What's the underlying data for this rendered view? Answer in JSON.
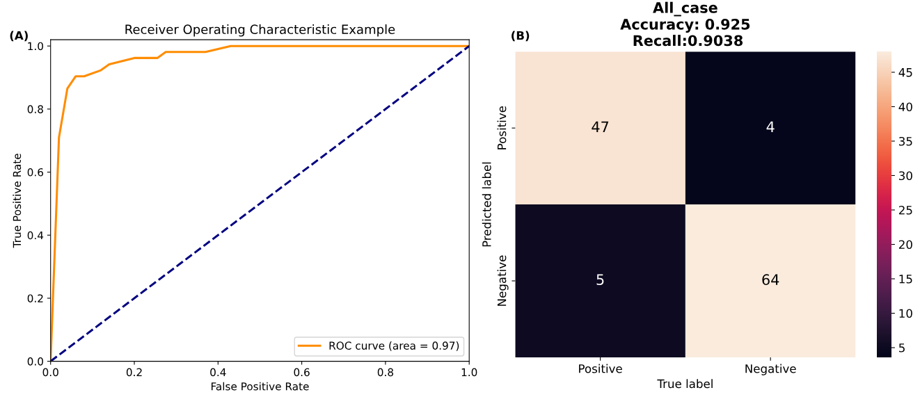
{
  "chart_data": [
    {
      "type": "line",
      "title": "Receiver Operating Characteristic Example",
      "xlabel": "False Positive Rate",
      "ylabel": "True Positive Rate",
      "annotations": [
        "(A)"
      ],
      "series": [
        {
          "name": "ROC curve (area = 0.97)",
          "color": "#ff8c00",
          "line_style": "solid",
          "x": [
            0,
            0.02,
            0.04,
            0.06,
            0.08,
            0.12,
            0.14,
            0.17,
            0.2,
            0.255,
            0.275,
            0.37,
            0.43,
            1.0
          ],
          "values": [
            0,
            0.71,
            0.865,
            0.904,
            0.904,
            0.923,
            0.942,
            0.952,
            0.962,
            0.962,
            0.981,
            0.981,
            1.0,
            1.0
          ]
        },
        {
          "color": "#000080",
          "line_style": "dashed",
          "x": [
            0,
            1
          ],
          "values": [
            0,
            1
          ]
        }
      ],
      "xlim": [
        0,
        1
      ],
      "ylim": [
        0,
        1.02
      ],
      "xticks": [
        {
          "value": 0,
          "label": "0.0"
        },
        0.2,
        0.4,
        0.6,
        0.8,
        {
          "value": 1,
          "label": "1.0"
        }
      ],
      "yticks": [
        {
          "value": 0,
          "label": "0.0"
        },
        0.2,
        0.4,
        0.6,
        0.8,
        {
          "value": 1,
          "label": "1.0"
        }
      ],
      "legend": "bottom right",
      "grid": false
    },
    {
      "type": "heatmap",
      "title": "All_case\nAccuracy: 0.925\n Recall:0.9038",
      "xlabel": "True label",
      "ylabel": "Predicted label",
      "annotations": [
        "(B)"
      ],
      "categories": [
        "Positive",
        "Negative"
      ],
      "y_categories": [
        "Positive",
        "Negative"
      ],
      "cells": [
        [
          47,
          4
        ],
        [
          5,
          64
        ]
      ],
      "data_labels": true,
      "clim": [
        3.6,
        48
      ],
      "cticks": [
        5,
        10,
        15,
        20,
        25,
        30,
        35,
        40,
        45
      ]
    }
  ]
}
